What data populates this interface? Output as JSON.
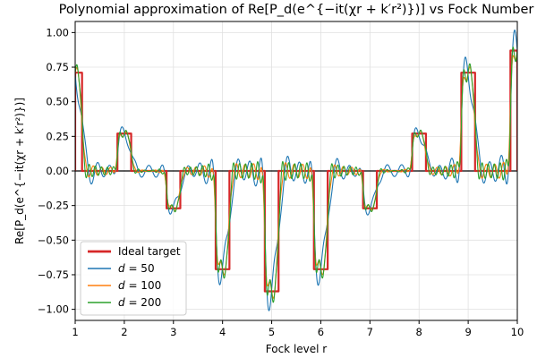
{
  "chart_data": {
    "type": "line",
    "title": "Polynomial approximation of Re[P_d(e^{−it(χr + k′r²)})] vs Fock Number",
    "xlabel": "Fock level r",
    "ylabel": "Re[P_d(e^{−it(χr + k′r²)})]",
    "xlim": [
      1,
      10
    ],
    "ylim": [
      -1.08,
      1.08
    ],
    "xticks": [
      1,
      2,
      3,
      4,
      5,
      6,
      7,
      8,
      9,
      10
    ],
    "yticks": [
      -1.0,
      -0.75,
      -0.5,
      -0.25,
      0.0,
      0.25,
      0.5,
      0.75,
      1.0
    ],
    "ytick_labels": [
      "−1.00",
      "−0.75",
      "−0.50",
      "−0.25",
      "0.00",
      "0.25",
      "0.50",
      "0.75",
      "1.00"
    ],
    "grid": true,
    "legend_position": "lower-left",
    "target_levels": {
      "r": [
        1,
        2,
        3,
        4,
        5,
        6,
        7,
        8,
        9,
        10
      ],
      "value": [
        0.71,
        0.27,
        -0.27,
        -0.71,
        -0.87,
        -0.71,
        -0.27,
        0.27,
        0.71,
        0.87
      ]
    },
    "step_half_width": 0.14,
    "series": [
      {
        "name": "Ideal target",
        "label_prefix": "Ideal target",
        "label_math": "",
        "color": "#d62728",
        "width": 2.2,
        "ripple_amp": 0.0,
        "ripple_freq": 0
      },
      {
        "name": "d = 50",
        "label_prefix": "d",
        "label_math": " = 50",
        "color": "#1f77b4",
        "width": 1.1,
        "ripple_amp": 0.09,
        "ripple_freq": 10.5
      },
      {
        "name": "d = 100",
        "label_prefix": "d",
        "label_math": " = 100",
        "color": "#ff7f0e",
        "width": 1.1,
        "ripple_amp": 0.06,
        "ripple_freq": 16.5
      },
      {
        "name": "d = 200",
        "label_prefix": "d",
        "label_math": " = 200",
        "color": "#2ca02c",
        "width": 1.1,
        "ripple_amp": 0.045,
        "ripple_freq": 23.0
      }
    ],
    "zero_line": true
  },
  "colors": {
    "axes_edge": "#000000",
    "grid": "#e0e0e0",
    "zero_line": "#000000"
  }
}
